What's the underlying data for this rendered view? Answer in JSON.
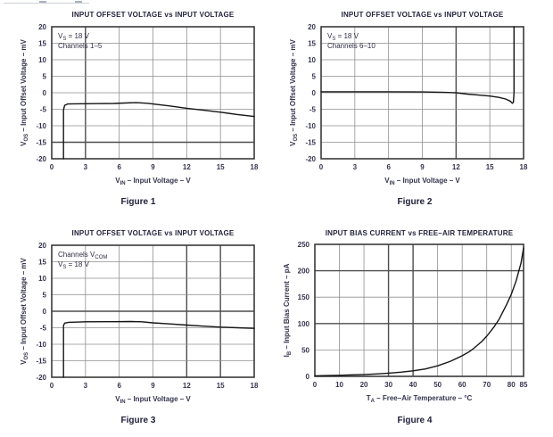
{
  "page": {
    "background": "#ffffff"
  },
  "colors": {
    "title_text": "#23233d",
    "tick_text": "#34344f",
    "axis_label_text": "#34344f",
    "annotation_text": "#2c2c44",
    "caption_text": "#1e1e38",
    "grid": "#8f8f8f",
    "grid_bold": "#4d4d4d",
    "frame": "#3a3a3a",
    "curve": "#141414"
  },
  "chart_data": [
    {
      "type": "line",
      "title": "INPUT OFFSET VOLTAGE vs INPUT VOLTAGE",
      "caption": "Figure 1",
      "xlabel": [
        {
          "t": "V"
        },
        {
          "t": "IN",
          "sub": true
        },
        {
          "t": " – Input Voltage – V"
        }
      ],
      "ylabel": [
        {
          "t": "V"
        },
        {
          "t": "OS",
          "sub": true
        },
        {
          "t": " – Input Offset Voltage – mV"
        }
      ],
      "xlim": [
        0,
        18
      ],
      "ylim": [
        -20,
        20
      ],
      "xticks": [
        0,
        3,
        6,
        9,
        12,
        15,
        18
      ],
      "yticks": [
        -20,
        -15,
        -10,
        -5,
        0,
        5,
        10,
        15,
        20
      ],
      "bold_x": [
        3
      ],
      "bold_y": [
        -15
      ],
      "grid": true,
      "annotations": [
        [
          {
            "t": "V"
          },
          {
            "t": "S",
            "sub": true
          },
          {
            "t": " = 18 V"
          }
        ],
        [
          {
            "t": "Channels 1–5"
          }
        ]
      ],
      "series": [
        {
          "name": "input-offset-voltage-ch1-5",
          "points": [
            [
              1.05,
              -20
            ],
            [
              1.05,
              -5.2
            ],
            [
              1.15,
              -3.8
            ],
            [
              1.4,
              -3.4
            ],
            [
              2,
              -3.35
            ],
            [
              4,
              -3.3
            ],
            [
              5.5,
              -3.25
            ],
            [
              6.5,
              -3.1
            ],
            [
              7.5,
              -3.0
            ],
            [
              8.5,
              -3.2
            ],
            [
              9,
              -3.4
            ],
            [
              10.5,
              -4.0
            ],
            [
              12,
              -4.7
            ],
            [
              13.5,
              -5.3
            ],
            [
              15,
              -5.9
            ],
            [
              16.5,
              -6.6
            ],
            [
              18,
              -7.2
            ]
          ]
        }
      ]
    },
    {
      "type": "line",
      "title": "INPUT OFFSET VOLTAGE vs INPUT VOLTAGE",
      "caption": "Figure 2",
      "xlabel": [
        {
          "t": "V"
        },
        {
          "t": "IN",
          "sub": true
        },
        {
          "t": " – Input Voltage – V"
        }
      ],
      "ylabel": [
        {
          "t": "V"
        },
        {
          "t": "OS",
          "sub": true
        },
        {
          "t": " – Input Offset Voltage – mV"
        }
      ],
      "xlim": [
        0,
        18
      ],
      "ylim": [
        -20,
        20
      ],
      "xticks": [
        0,
        3,
        6,
        9,
        12,
        15,
        18
      ],
      "yticks": [
        -20,
        -15,
        -10,
        -5,
        0,
        5,
        10,
        15,
        20
      ],
      "bold_x": [
        12
      ],
      "bold_y": [],
      "grid": true,
      "annotations": [
        [
          {
            "t": "V"
          },
          {
            "t": "S",
            "sub": true
          },
          {
            "t": " = 18 V"
          }
        ],
        [
          {
            "t": "Channels 6–10"
          }
        ]
      ],
      "series": [
        {
          "name": "input-offset-voltage-ch6-10",
          "points": [
            [
              0,
              0.3
            ],
            [
              6,
              0.3
            ],
            [
              9,
              0.25
            ],
            [
              11,
              0.1
            ],
            [
              12,
              0
            ],
            [
              13,
              -0.4
            ],
            [
              14,
              -0.7
            ],
            [
              15,
              -1.0
            ],
            [
              15.8,
              -1.4
            ],
            [
              16.4,
              -1.9
            ],
            [
              16.8,
              -2.5
            ],
            [
              17.0,
              -3.2
            ],
            [
              17.1,
              -2.9
            ],
            [
              17.15,
              0
            ],
            [
              17.15,
              20
            ]
          ]
        }
      ]
    },
    {
      "type": "line",
      "title": "INPUT OFFSET VOLTAGE vs INPUT VOLTAGE",
      "caption": "Figure 3",
      "xlabel": [
        {
          "t": "V"
        },
        {
          "t": "IN",
          "sub": true
        },
        {
          "t": " – Input Voltage – V"
        }
      ],
      "ylabel": [
        {
          "t": "V"
        },
        {
          "t": "OS",
          "sub": true
        },
        {
          "t": " – Input Offset Voltage – mV"
        }
      ],
      "xlim": [
        0,
        18
      ],
      "ylim": [
        -20,
        20
      ],
      "xticks": [
        0,
        3,
        6,
        9,
        12,
        15,
        18
      ],
      "yticks": [
        -20,
        -15,
        -10,
        -5,
        0,
        5,
        10,
        15,
        20
      ],
      "bold_x": [
        12,
        15
      ],
      "bold_y": [
        0
      ],
      "grid": true,
      "annotations": [
        [
          {
            "t": "Channels V"
          },
          {
            "t": "COM",
            "sub": true
          }
        ],
        [
          {
            "t": "V"
          },
          {
            "t": "S",
            "sub": true
          },
          {
            "t": " = 18 V"
          }
        ]
      ],
      "series": [
        {
          "name": "input-offset-voltage-vcom",
          "points": [
            [
              1.05,
              -20
            ],
            [
              1.05,
              -4.3
            ],
            [
              1.15,
              -3.6
            ],
            [
              1.5,
              -3.35
            ],
            [
              3,
              -3.2
            ],
            [
              5,
              -3.15
            ],
            [
              7,
              -3.1
            ],
            [
              8,
              -3.2
            ],
            [
              9,
              -3.5
            ],
            [
              10.5,
              -3.85
            ],
            [
              12,
              -4.2
            ],
            [
              13.5,
              -4.5
            ],
            [
              15,
              -4.8
            ],
            [
              16.5,
              -5.0
            ],
            [
              18,
              -5.2
            ]
          ]
        }
      ]
    },
    {
      "type": "line",
      "title": "INPUT BIAS CURRENT vs FREE–AIR TEMPERATURE",
      "caption": "Figure 4",
      "xlabel": [
        {
          "t": "T"
        },
        {
          "t": "A",
          "sub": true
        },
        {
          "t": " – Free–Air Temperature – °C"
        }
      ],
      "ylabel": [
        {
          "t": "I"
        },
        {
          "t": "B",
          "sub": true
        },
        {
          "t": " – Input Bias Current – pA"
        }
      ],
      "xlim": [
        0,
        85
      ],
      "ylim": [
        0,
        250
      ],
      "xticks": [
        0,
        10,
        20,
        30,
        40,
        50,
        60,
        70,
        80,
        85
      ],
      "yticks": [
        0,
        50,
        100,
        150,
        200,
        250
      ],
      "bold_x": [
        30,
        40
      ],
      "bold_y": [
        100,
        200
      ],
      "grid": true,
      "annotations": [],
      "series": [
        {
          "name": "input-bias-current-vs-temperature",
          "points": [
            [
              0,
              1
            ],
            [
              5,
              1.5
            ],
            [
              10,
              2
            ],
            [
              15,
              2.8
            ],
            [
              20,
              3.5
            ],
            [
              25,
              4.5
            ],
            [
              30,
              6
            ],
            [
              35,
              8
            ],
            [
              40,
              10.5
            ],
            [
              45,
              14
            ],
            [
              50,
              20
            ],
            [
              55,
              28
            ],
            [
              60,
              39
            ],
            [
              63,
              47
            ],
            [
              65,
              54
            ],
            [
              68,
              66
            ],
            [
              70,
              76
            ],
            [
              73,
              94
            ],
            [
              75,
              108
            ],
            [
              78,
              135
            ],
            [
              80,
              155
            ],
            [
              82,
              181
            ],
            [
              84,
              215
            ],
            [
              85,
              243
            ]
          ]
        }
      ]
    }
  ]
}
